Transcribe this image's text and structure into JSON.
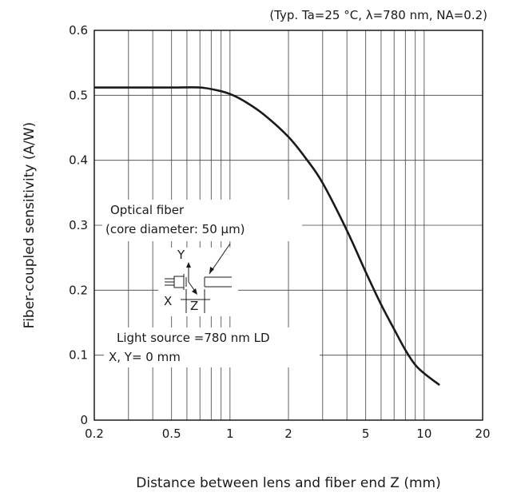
{
  "chart_data": {
    "type": "line",
    "conditions_note": "(Typ. Ta=25 °C, λ=780 nm,  NA=0.2)",
    "xlabel": "Distance between lens and fiber end Z (mm)",
    "ylabel": "Fiber-coupled sensitivity (A/W)",
    "xscale": "log",
    "xlim": [
      0.2,
      20
    ],
    "ylim": [
      0,
      0.6
    ],
    "grid": true,
    "x_ticks": [
      {
        "value": 0.2,
        "label": "0.2"
      },
      {
        "value": 0.5,
        "label": "0.5"
      },
      {
        "value": 1,
        "label": "1"
      },
      {
        "value": 2,
        "label": "2"
      },
      {
        "value": 5,
        "label": "5"
      },
      {
        "value": 10,
        "label": "10"
      },
      {
        "value": 20,
        "label": "20"
      }
    ],
    "x_minor_grid": [
      0.3,
      0.4,
      0.5,
      0.6,
      0.7,
      0.8,
      0.9,
      1,
      2,
      3,
      4,
      5,
      6,
      7,
      8,
      9,
      10
    ],
    "y_ticks": [
      {
        "value": 0,
        "label": "0"
      },
      {
        "value": 0.1,
        "label": "0.1"
      },
      {
        "value": 0.2,
        "label": "0.2"
      },
      {
        "value": 0.3,
        "label": "0.3"
      },
      {
        "value": 0.4,
        "label": "0.4"
      },
      {
        "value": 0.5,
        "label": "0.5"
      },
      {
        "value": 0.6,
        "label": "0.6"
      }
    ],
    "series": [
      {
        "x": [
          0.2,
          0.3,
          0.5,
          0.7,
          0.85,
          1.0,
          1.2,
          1.5,
          2.0,
          2.5,
          3.0,
          4.0,
          5.0,
          6.0,
          7.0,
          8.0,
          9.0,
          10.0,
          12.0
        ],
        "y": [
          0.512,
          0.512,
          0.512,
          0.512,
          0.508,
          0.502,
          0.49,
          0.47,
          0.436,
          0.4,
          0.365,
          0.292,
          0.228,
          0.178,
          0.14,
          0.108,
          0.085,
          0.072,
          0.054
        ]
      }
    ],
    "annotations": {
      "fiber_label_line1": "Optical fiber",
      "fiber_label_line2": "(core diameter: 50 μm)",
      "source_line1": "Light source =780 nm LD",
      "source_line2": "X, Y= 0 mm",
      "axis_y": "Y",
      "axis_x": "X",
      "axis_z": "Z"
    },
    "line_color": "#1a1a1a",
    "grid_color": "#404040"
  }
}
